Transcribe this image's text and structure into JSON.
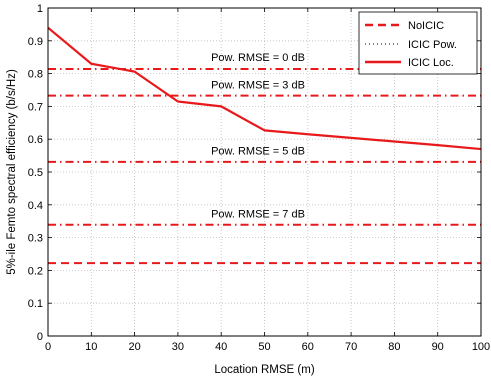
{
  "colors": {
    "series": "#e8191b",
    "grid": "#bdbdbd",
    "axis": "#000000",
    "background": "#ffffff"
  },
  "chart_data": {
    "type": "line",
    "title": "",
    "xlabel": "Location RMSE (m)",
    "ylabel": "5%-ile Femto spectral efficiency (b/s/Hz)",
    "xlim": [
      0,
      100
    ],
    "ylim": [
      0,
      1
    ],
    "x_ticks": [
      0,
      10,
      20,
      30,
      40,
      50,
      60,
      70,
      80,
      90,
      100
    ],
    "y_ticks": [
      0,
      0.1,
      0.2,
      0.3,
      0.4,
      0.5,
      0.6,
      0.7,
      0.8,
      0.9,
      1
    ],
    "grid": true,
    "legend_position": "top-right",
    "legend": [
      "NoICIC",
      "ICIC Pow.",
      "ICIC Loc."
    ],
    "series": [
      {
        "name": "NoICIC",
        "line_style": "dashed",
        "x": [
          0,
          100
        ],
        "y": [
          0.222,
          0.222
        ]
      },
      {
        "name": "ICIC Pow.",
        "line_style": "dotted",
        "x": [
          0,
          100
        ],
        "y": [
          0.814,
          0.814
        ]
      },
      {
        "name": "ICIC Pow.",
        "line_style": "dotted",
        "x": [
          0,
          100
        ],
        "y": [
          0.733,
          0.733
        ]
      },
      {
        "name": "ICIC Pow.",
        "line_style": "dotted",
        "x": [
          0,
          100
        ],
        "y": [
          0.531,
          0.531
        ]
      },
      {
        "name": "ICIC Pow.",
        "line_style": "dotted",
        "x": [
          0,
          100
        ],
        "y": [
          0.339,
          0.339
        ]
      },
      {
        "name": "ICIC Loc.",
        "line_style": "solid",
        "x": [
          0,
          10,
          20,
          30,
          40,
          50,
          60,
          70,
          80,
          90,
          100
        ],
        "y": [
          0.94,
          0.83,
          0.806,
          0.715,
          0.7,
          0.627,
          0.615,
          0.604,
          0.593,
          0.582,
          0.57
        ]
      }
    ],
    "annotations": [
      {
        "text": "Pow. RMSE = 0 dB",
        "x": 48.5,
        "y": 0.838
      },
      {
        "text": "Pow. RMSE = 3 dB",
        "x": 48.5,
        "y": 0.755
      },
      {
        "text": "Pow. RMSE = 5 dB",
        "x": 48.5,
        "y": 0.553
      },
      {
        "text": "Pow. RMSE = 7 dB",
        "x": 48.5,
        "y": 0.361
      }
    ]
  }
}
